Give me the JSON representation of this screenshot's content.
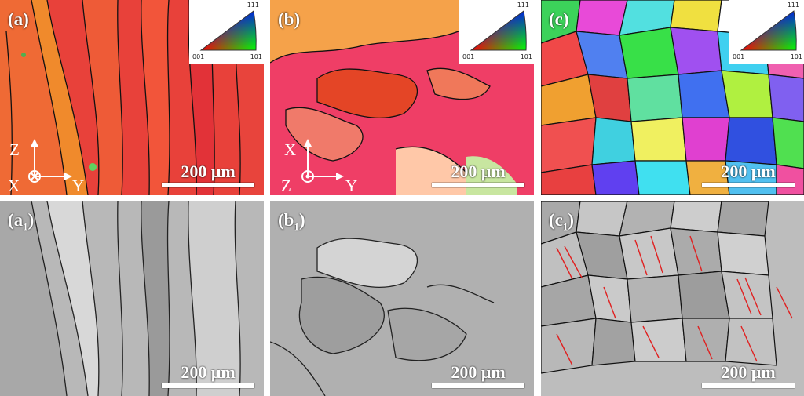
{
  "panels": {
    "a": {
      "label": "(a)"
    },
    "b": {
      "label": "(b)"
    },
    "c": {
      "label": "(c)"
    },
    "a1": {
      "label": "(a",
      "sub": "1",
      "close": ")"
    },
    "b1": {
      "label": "(b",
      "sub": "1",
      "close": ")"
    },
    "c1": {
      "label": "(c",
      "sub": "1",
      "close": ")"
    }
  },
  "scale_bar": "200 μm",
  "ipf_legend": {
    "top": "111",
    "left": "001",
    "right": "101"
  },
  "axes_a": {
    "up": "Z",
    "origin": "X",
    "right": "Y"
  },
  "axes_b": {
    "up": "X",
    "origin": "Z",
    "right": "Y"
  },
  "colors": {
    "red_grain": "#e8413a",
    "orange_grain": "#f07a2e",
    "grey_bg": "#b5b5b5",
    "twin_boundary": "#e02020"
  }
}
